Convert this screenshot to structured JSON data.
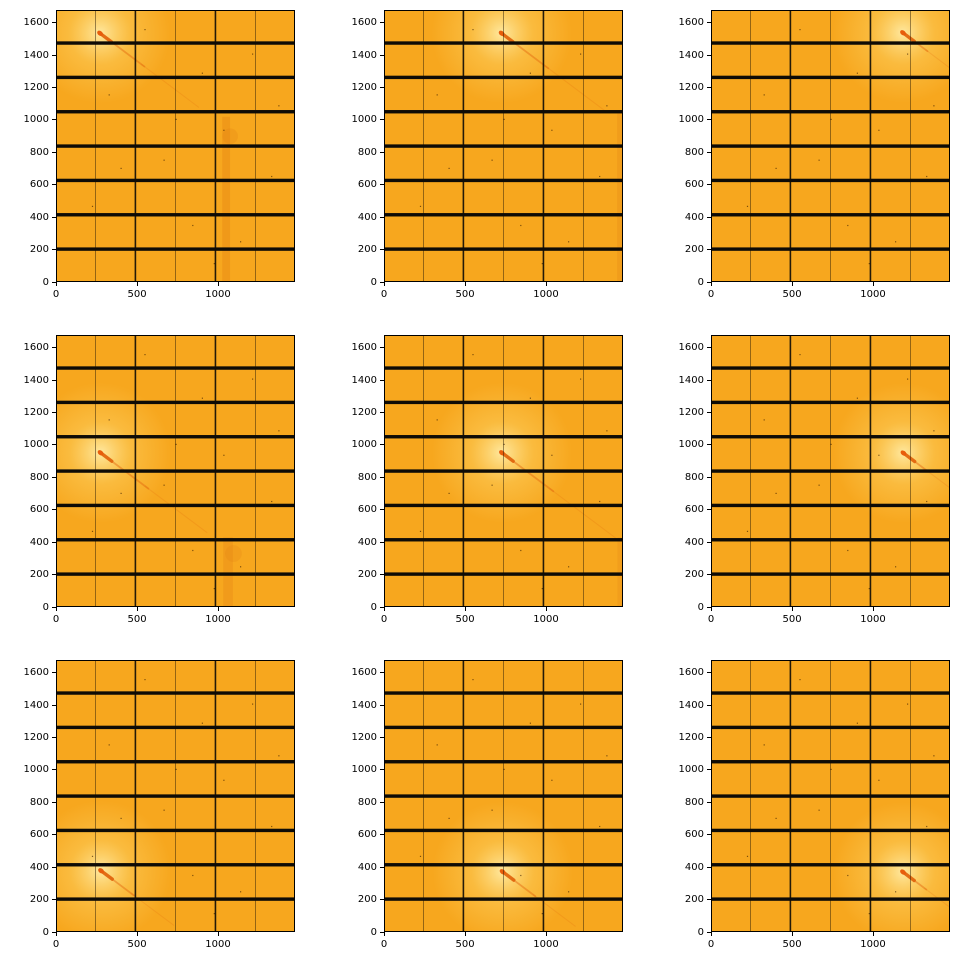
{
  "figure": {
    "background": "#ffffff",
    "rows": 3,
    "cols": 3
  },
  "chart_data": {
    "type": "heatmap",
    "description": "3x3 grid of pixel-detector diffraction images (orange colormap) with black module-gap bars; beam-center bright spot with diagonal down-right streak moves across a 3x3 position raster",
    "xlim": [
      0,
      1475
    ],
    "ylim": [
      0,
      1679
    ],
    "xticks": [
      0,
      500,
      1000
    ],
    "yticks": [
      0,
      200,
      400,
      600,
      800,
      1000,
      1200,
      1400,
      1600
    ],
    "grid": false,
    "legend": null,
    "title": "",
    "xlabel": "",
    "ylabel": "",
    "detector": {
      "module_gap_centers_y": [
        203,
        415,
        627,
        839,
        1051,
        1263,
        1475
      ],
      "module_gap_thickness_y": 21,
      "module_gap_centers_x": [
        490,
        984
      ],
      "chip_line_centers_x": [
        244,
        737,
        1231
      ]
    },
    "colors": {
      "base": "#f7a71e",
      "halo_center": "#ffeca6",
      "halo_mid": "#fdcf5e",
      "streak": "#e2670e",
      "spot": "#e85d0b",
      "gap": "#0e0b06",
      "chip_line": "#2a1c06",
      "smear": "#e07c12",
      "spine": "#000000"
    },
    "subplots": [
      {
        "name": "row0-col0",
        "beam_x": 272,
        "beam_y": 1535,
        "streak_len": 760,
        "artifacts": [
          {
            "kind": "vertical-smear",
            "x": 1050,
            "w": 48,
            "y0": 0,
            "y1": 1020,
            "opacity": 0.3
          },
          {
            "kind": "blob",
            "x": 1075,
            "y": 900,
            "r": 48,
            "opacity": 0.22
          }
        ]
      },
      {
        "name": "row0-col1",
        "beam_x": 726,
        "beam_y": 1535,
        "streak_len": 800,
        "artifacts": [
          {
            "kind": "vertical-smear",
            "x": 1458,
            "w": 38,
            "y0": 0,
            "y1": 1050,
            "opacity": 0.22
          }
        ]
      },
      {
        "name": "row0-col2",
        "beam_x": 1185,
        "beam_y": 1538,
        "streak_len": 420,
        "artifacts": []
      },
      {
        "name": "row1-col0",
        "beam_x": 275,
        "beam_y": 952,
        "streak_len": 820,
        "artifacts": [
          {
            "kind": "vertical-smear",
            "x": 1062,
            "w": 60,
            "y0": 0,
            "y1": 430,
            "opacity": 0.26
          },
          {
            "kind": "blob",
            "x": 1095,
            "y": 330,
            "r": 52,
            "opacity": 0.2
          }
        ]
      },
      {
        "name": "row1-col1",
        "beam_x": 728,
        "beam_y": 952,
        "streak_len": 880,
        "artifacts": [
          {
            "kind": "vertical-smear",
            "x": 1458,
            "w": 34,
            "y0": 0,
            "y1": 430,
            "opacity": 0.2
          }
        ]
      },
      {
        "name": "row1-col2",
        "beam_x": 1188,
        "beam_y": 950,
        "streak_len": 420,
        "artifacts": []
      },
      {
        "name": "row2-col0",
        "beam_x": 278,
        "beam_y": 378,
        "streak_len": 560,
        "artifacts": []
      },
      {
        "name": "row2-col1",
        "beam_x": 732,
        "beam_y": 372,
        "streak_len": 560,
        "artifacts": []
      },
      {
        "name": "row2-col2",
        "beam_x": 1185,
        "beam_y": 370,
        "streak_len": 400,
        "artifacts": []
      }
    ],
    "dead_pixel_fractions": [
      [
        0.08,
        0.12
      ],
      [
        0.22,
        0.31
      ],
      [
        0.37,
        0.07
      ],
      [
        0.45,
        0.55
      ],
      [
        0.61,
        0.23
      ],
      [
        0.7,
        0.44
      ],
      [
        0.82,
        0.16
      ],
      [
        0.9,
        0.61
      ],
      [
        0.15,
        0.72
      ],
      [
        0.33,
        0.88
      ],
      [
        0.57,
        0.79
      ],
      [
        0.77,
        0.85
      ],
      [
        0.93,
        0.35
      ],
      [
        0.5,
        0.4
      ],
      [
        0.27,
        0.58
      ],
      [
        0.66,
        0.93
      ]
    ]
  }
}
